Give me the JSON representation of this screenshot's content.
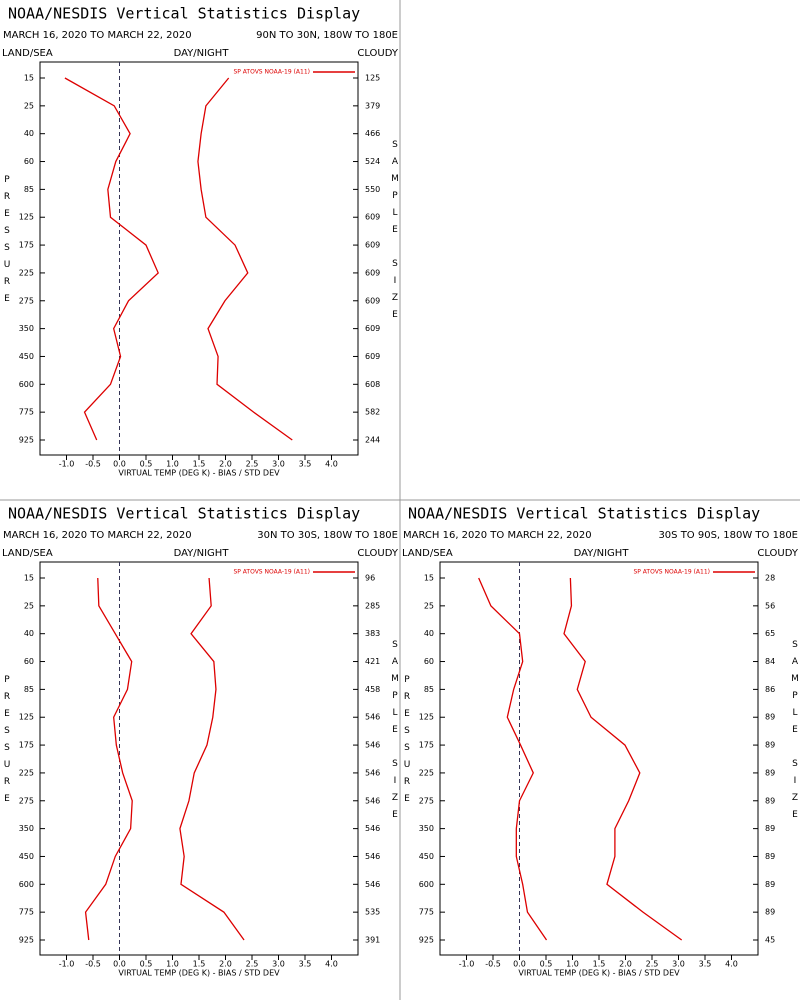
{
  "chart_data": [
    {
      "type": "line",
      "title": "NOAA/NESDIS Vertical Statistics Display",
      "date_range": "MARCH 16, 2020 TO MARCH 22, 2020",
      "region": "90N TO 30N, 180W TO 180E",
      "left_label": "LAND/SEA",
      "center_label": "DAY/NIGHT",
      "right_label": "CLOUDY",
      "y_label": "PRESSURE",
      "y2_label": "SAMPLE SIZE",
      "x_label": "VIRTUAL TEMP (DEG K) - BIAS / STD DEV",
      "categories": [
        "15",
        "25",
        "40",
        "60",
        "85",
        "125",
        "175",
        "225",
        "275",
        "350",
        "450",
        "600",
        "775",
        "925"
      ],
      "sample_sizes": [
        125,
        379,
        466,
        524,
        550,
        609,
        609,
        609,
        609,
        609,
        609,
        608,
        582,
        244
      ],
      "series": [
        {
          "name": "SP ATOVS NOAA-19 (A11)",
          "color": "#dd0000",
          "bias": [
            -1.03,
            -0.1,
            0.2,
            -0.07,
            -0.22,
            -0.17,
            0.5,
            0.73,
            0.17,
            -0.11,
            0.02,
            -0.17,
            -0.66,
            -0.43
          ],
          "std_dev": [
            2.06,
            1.63,
            1.54,
            1.48,
            1.54,
            1.63,
            2.18,
            2.42,
            1.99,
            1.67,
            1.86,
            1.84,
            2.53,
            3.26
          ]
        }
      ],
      "xlim": [
        -1.5,
        4.5
      ],
      "xticks": [
        {
          "value": -1,
          "label": "-1.0"
        },
        {
          "value": -0.5,
          "label": "-0.5"
        },
        {
          "value": 0,
          "label": "0.0"
        },
        {
          "value": 0.5,
          "label": "0.5"
        },
        {
          "value": 1,
          "label": "1.0"
        },
        {
          "value": 1.5,
          "label": "1.5"
        },
        {
          "value": 2,
          "label": "2.0"
        },
        {
          "value": 2.5,
          "label": "2.5"
        },
        {
          "value": 3,
          "label": "3.0"
        },
        {
          "value": 3.5,
          "label": "3.5"
        },
        {
          "value": 4,
          "label": "4.0"
        }
      ]
    },
    {
      "type": "line",
      "title": "NOAA/NESDIS Vertical Statistics Display",
      "date_range": "MARCH 16, 2020 TO MARCH 22, 2020",
      "region": "30N TO 30S, 180W TO 180E",
      "left_label": "LAND/SEA",
      "center_label": "DAY/NIGHT",
      "right_label": "CLOUDY",
      "y_label": "PRESSURE",
      "y2_label": "SAMPLE SIZE",
      "x_label": "VIRTUAL TEMP (DEG K) - BIAS / STD DEV",
      "categories": [
        "15",
        "25",
        "40",
        "60",
        "85",
        "125",
        "175",
        "225",
        "275",
        "350",
        "450",
        "600",
        "775",
        "925"
      ],
      "sample_sizes": [
        96,
        285,
        383,
        421,
        458,
        546,
        546,
        546,
        546,
        546,
        546,
        546,
        535,
        391
      ],
      "series": [
        {
          "name": "SP ATOVS NOAA-19 (A11)",
          "color": "#dd0000",
          "bias": [
            -0.41,
            -0.39,
            -0.08,
            0.23,
            0.15,
            -0.11,
            -0.06,
            0.06,
            0.24,
            0.21,
            -0.08,
            -0.26,
            -0.64,
            -0.58
          ],
          "std_dev": [
            1.69,
            1.73,
            1.35,
            1.78,
            1.82,
            1.76,
            1.65,
            1.41,
            1.31,
            1.14,
            1.22,
            1.16,
            1.97,
            2.35
          ]
        }
      ],
      "xlim": [
        -1.5,
        4.5
      ],
      "xticks": [
        {
          "value": -1,
          "label": "-1.0"
        },
        {
          "value": -0.5,
          "label": "-0.5"
        },
        {
          "value": 0,
          "label": "0.0"
        },
        {
          "value": 0.5,
          "label": "0.5"
        },
        {
          "value": 1,
          "label": "1.0"
        },
        {
          "value": 1.5,
          "label": "1.5"
        },
        {
          "value": 2,
          "label": "2.0"
        },
        {
          "value": 2.5,
          "label": "2.5"
        },
        {
          "value": 3,
          "label": "3.0"
        },
        {
          "value": 3.5,
          "label": "3.5"
        },
        {
          "value": 4,
          "label": "4.0"
        }
      ]
    },
    {
      "type": "line",
      "title": "NOAA/NESDIS Vertical Statistics Display",
      "date_range": "MARCH 16, 2020 TO MARCH 22, 2020",
      "region": "30S TO 90S, 180W TO 180E",
      "left_label": "LAND/SEA",
      "center_label": "DAY/NIGHT",
      "right_label": "CLOUDY",
      "y_label": "PRESSURE",
      "y2_label": "SAMPLE SIZE",
      "x_label": "VIRTUAL TEMP (DEG K) - BIAS / STD DEV",
      "categories": [
        "15",
        "25",
        "40",
        "60",
        "85",
        "125",
        "175",
        "225",
        "275",
        "350",
        "450",
        "600",
        "775",
        "925"
      ],
      "sample_sizes": [
        28,
        56,
        65,
        84,
        86,
        89,
        89,
        89,
        89,
        89,
        89,
        89,
        89,
        45
      ],
      "series": [
        {
          "name": "SP ATOVS NOAA-19 (A11)",
          "color": "#dd0000",
          "bias": [
            -0.77,
            -0.54,
            0,
            0.06,
            -0.11,
            -0.23,
            0.02,
            0.26,
            0,
            -0.06,
            -0.06,
            0.06,
            0.15,
            0.51
          ],
          "std_dev": [
            0.96,
            0.98,
            0.84,
            1.24,
            1.09,
            1.35,
            1.99,
            2.27,
            2.06,
            1.8,
            1.8,
            1.65,
            2.33,
            3.06
          ]
        }
      ],
      "xlim": [
        -1.5,
        4.5
      ],
      "xticks": [
        {
          "value": -1,
          "label": "-1.0"
        },
        {
          "value": -0.5,
          "label": "-0.5"
        },
        {
          "value": 0,
          "label": "0.0"
        },
        {
          "value": 0.5,
          "label": "0.5"
        },
        {
          "value": 1,
          "label": "1.0"
        },
        {
          "value": 1.5,
          "label": "1.5"
        },
        {
          "value": 2,
          "label": "2.0"
        },
        {
          "value": 2.5,
          "label": "2.5"
        },
        {
          "value": 3,
          "label": "3.0"
        },
        {
          "value": 3.5,
          "label": "3.5"
        },
        {
          "value": 4,
          "label": "4.0"
        }
      ]
    }
  ]
}
